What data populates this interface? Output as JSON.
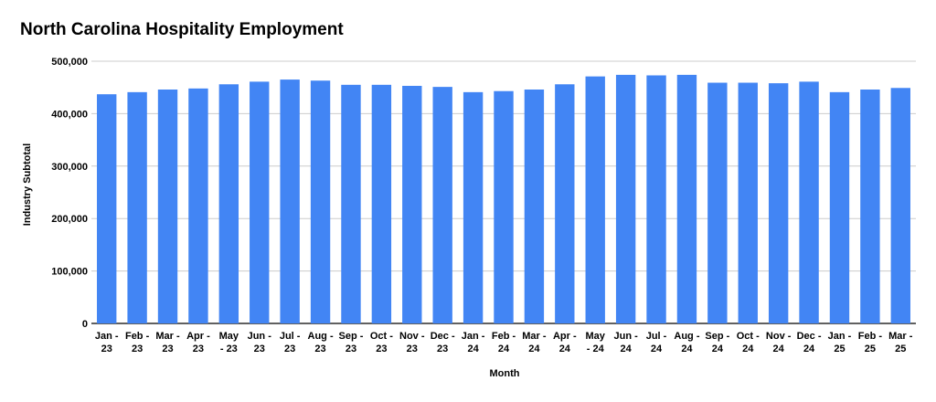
{
  "chart_data": {
    "type": "bar",
    "title": "North Carolina Hospitality Employment",
    "xlabel": "Month",
    "ylabel": "Industry Subtotal",
    "ylim": [
      0,
      500000
    ],
    "yticks": [
      "0",
      "100,000",
      "200,000",
      "300,000",
      "400,000",
      "500,000"
    ],
    "ytick_values": [
      0,
      100000,
      200000,
      300000,
      400000,
      500000
    ],
    "grid": true,
    "bar_color": "#4285f4",
    "categories": [
      [
        "Jan -",
        "23"
      ],
      [
        "Feb -",
        "23"
      ],
      [
        "Mar -",
        "23"
      ],
      [
        "Apr -",
        "23"
      ],
      [
        "May",
        "- 23"
      ],
      [
        "Jun -",
        "23"
      ],
      [
        "Jul -",
        "23"
      ],
      [
        "Aug -",
        "23"
      ],
      [
        "Sep -",
        "23"
      ],
      [
        "Oct -",
        "23"
      ],
      [
        "Nov -",
        "23"
      ],
      [
        "Dec -",
        "23"
      ],
      [
        "Jan -",
        "24"
      ],
      [
        "Feb -",
        "24"
      ],
      [
        "Mar -",
        "24"
      ],
      [
        "Apr -",
        "24"
      ],
      [
        "May",
        "- 24"
      ],
      [
        "Jun -",
        "24"
      ],
      [
        "Jul -",
        "24"
      ],
      [
        "Aug -",
        "24"
      ],
      [
        "Sep -",
        "24"
      ],
      [
        "Oct -",
        "24"
      ],
      [
        "Nov -",
        "24"
      ],
      [
        "Dec -",
        "24"
      ],
      [
        "Jan -",
        "25"
      ],
      [
        "Feb -",
        "25"
      ],
      [
        "Mar -",
        "25"
      ]
    ],
    "values": [
      437000,
      441000,
      446000,
      448000,
      456000,
      461000,
      465000,
      463000,
      455000,
      455000,
      453000,
      451000,
      441000,
      443000,
      446000,
      456000,
      471000,
      474000,
      473000,
      474000,
      459000,
      459000,
      458000,
      461000,
      441000,
      446000,
      449000
    ]
  }
}
